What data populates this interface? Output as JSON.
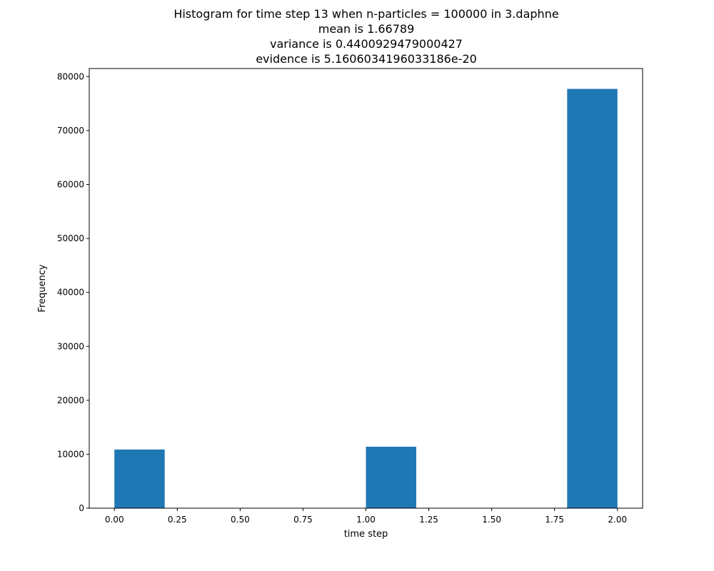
{
  "chart_data": {
    "type": "bar",
    "title_lines": [
      "Histogram for time step 13 when n-particles = 100000 in 3.daphne",
      "mean is 1.66789",
      "variance is 0.4400929479000427",
      "evidence is 5.1606034196033186e-20"
    ],
    "xlabel": "time step",
    "ylabel": "Frequency",
    "bar_color": "#1f77b4",
    "xlim": [
      -0.1,
      2.1
    ],
    "ylim": [
      0,
      81500
    ],
    "x_ticks": [
      0.0,
      0.25,
      0.5,
      0.75,
      1.0,
      1.25,
      1.5,
      1.75,
      2.0
    ],
    "x_tick_labels": [
      "0.00",
      "0.25",
      "0.50",
      "0.75",
      "1.00",
      "1.25",
      "1.50",
      "1.75",
      "2.00"
    ],
    "y_ticks": [
      0,
      10000,
      20000,
      30000,
      40000,
      50000,
      60000,
      70000,
      80000
    ],
    "y_tick_labels": [
      "0",
      "10000",
      "20000",
      "30000",
      "40000",
      "50000",
      "60000",
      "70000",
      "80000"
    ],
    "bins": [
      {
        "x0": 0.0,
        "x1": 0.2,
        "value": 10880
      },
      {
        "x0": 0.2,
        "x1": 0.4,
        "value": 0
      },
      {
        "x0": 0.4,
        "x1": 0.6,
        "value": 0
      },
      {
        "x0": 0.6,
        "x1": 0.8,
        "value": 0
      },
      {
        "x0": 0.8,
        "x1": 1.0,
        "value": 0
      },
      {
        "x0": 1.0,
        "x1": 1.2,
        "value": 11400
      },
      {
        "x0": 1.2,
        "x1": 1.4,
        "value": 0
      },
      {
        "x0": 1.4,
        "x1": 1.6,
        "value": 0
      },
      {
        "x0": 1.6,
        "x1": 1.8,
        "value": 0
      },
      {
        "x0": 1.8,
        "x1": 2.0,
        "value": 77720
      }
    ]
  }
}
